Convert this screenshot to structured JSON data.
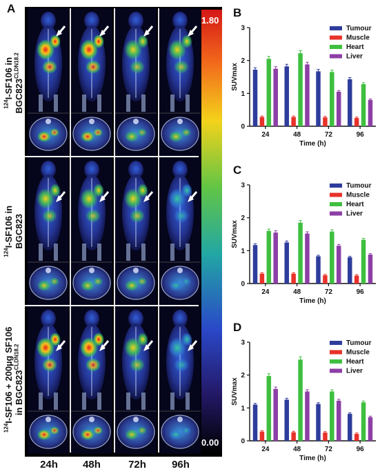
{
  "figure": {
    "panel_a_letter": "A",
    "row_labels": [
      {
        "prefix": "124",
        "main": "I-SF106 in",
        "line2": "BGC823",
        "sup": "CLDN18.2"
      },
      {
        "prefix": "124",
        "main": "I-SF106 in",
        "line2": "BGC823",
        "sup": ""
      },
      {
        "prefix": "124",
        "main": "I-SF106 + 200µg SF106",
        "line2": "in BGC823",
        "sup": "CLDN18.2"
      }
    ],
    "time_labels": [
      "24h",
      "48h",
      "72h",
      "96h"
    ],
    "colorbar": {
      "max_label": "1.80",
      "min_label": "0.00"
    }
  },
  "colors": {
    "Tumour": "#2e3d9c",
    "Muscle": "#e8322a",
    "Heart": "#3fbf3f",
    "Liver": "#8d3fa6"
  },
  "chart_data": [
    {
      "panel": "B",
      "type": "bar",
      "categories": [
        "24",
        "48",
        "72",
        "96"
      ],
      "series": [
        {
          "name": "Tumour",
          "values": [
            1.72,
            1.82,
            1.67,
            1.43
          ]
        },
        {
          "name": "Muscle",
          "values": [
            0.28,
            0.28,
            0.27,
            0.25
          ]
        },
        {
          "name": "Heart",
          "values": [
            2.05,
            2.22,
            1.65,
            1.28
          ]
        },
        {
          "name": "Liver",
          "values": [
            1.75,
            1.88,
            1.05,
            0.8
          ]
        }
      ],
      "xlabel": "Time (h)",
      "ylabel": "SUVmax",
      "ylim": [
        0,
        3
      ],
      "yticks": [
        "0",
        "1",
        "2",
        "3"
      ],
      "legend": "top-right",
      "grid": false
    },
    {
      "panel": "C",
      "type": "bar",
      "categories": [
        "24",
        "48",
        "72",
        "96"
      ],
      "series": [
        {
          "name": "Tumour",
          "values": [
            1.17,
            1.25,
            0.83,
            0.8
          ]
        },
        {
          "name": "Muscle",
          "values": [
            0.3,
            0.3,
            0.25,
            0.24
          ]
        },
        {
          "name": "Heart",
          "values": [
            1.6,
            1.85,
            1.58,
            1.33
          ]
        },
        {
          "name": "Liver",
          "values": [
            1.55,
            1.52,
            1.15,
            0.88
          ]
        }
      ],
      "xlabel": "Time (h)",
      "ylabel": "SUVmax",
      "ylim": [
        0,
        3
      ],
      "yticks": [
        "0",
        "1",
        "2",
        "3"
      ],
      "legend": "top-right",
      "grid": false
    },
    {
      "panel": "D",
      "type": "bar",
      "categories": [
        "24",
        "48",
        "72",
        "96"
      ],
      "series": [
        {
          "name": "Tumour",
          "values": [
            1.1,
            1.25,
            1.12,
            0.82
          ]
        },
        {
          "name": "Muscle",
          "values": [
            0.28,
            0.26,
            0.25,
            0.21
          ]
        },
        {
          "name": "Heart",
          "values": [
            1.97,
            2.47,
            1.5,
            1.17
          ]
        },
        {
          "name": "Liver",
          "values": [
            1.58,
            1.5,
            1.22,
            0.72
          ]
        }
      ],
      "xlabel": "Time (h)",
      "ylabel": "SUVmax",
      "ylim": [
        0,
        3
      ],
      "yticks": [
        "0",
        "1",
        "2",
        "3"
      ],
      "legend": "top-right",
      "grid": false
    }
  ]
}
